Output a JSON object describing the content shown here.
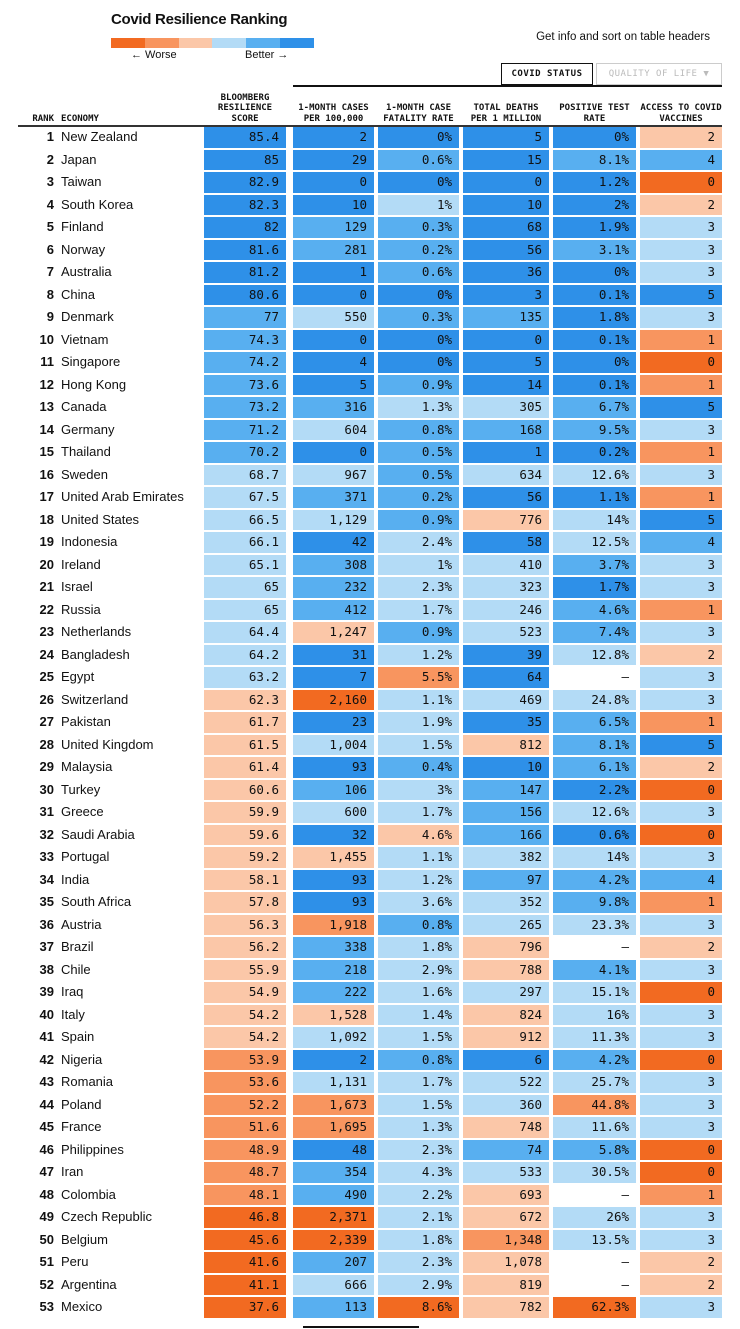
{
  "header": {
    "title": "Covid Resilience Ranking",
    "legend_worse": "← Worse",
    "legend_better": "Better →",
    "info": "Get info and sort on table headers",
    "tabs": [
      "COVID STATUS",
      "QUALITY OF LIFE ▼"
    ]
  },
  "palette": [
    "#f26a21",
    "#f8955f",
    "#fbc7a8",
    "#b3dbf6",
    "#58aff0",
    "#2e90e8",
    "#ffffff"
  ],
  "table": {
    "columns": [
      "RANK",
      "ECONOMY",
      "BLOOMBERG RESILIENCE SCORE",
      "1-MONTH CASES PER 100,000",
      "1-MONTH CASE FATALITY RATE",
      "TOTAL DEATHS PER 1 MILLION",
      "POSITIVE TEST RATE",
      "ACCESS TO COVID VACCINES"
    ],
    "rows": [
      {
        "cells": [
          "1",
          "New Zealand",
          "85.4",
          "2",
          "0%",
          "5",
          "0%",
          "2"
        ],
        "colors": [
          5,
          5,
          5,
          5,
          5,
          2
        ]
      },
      {
        "cells": [
          "2",
          "Japan",
          "85",
          "29",
          "0.6%",
          "15",
          "8.1%",
          "4"
        ],
        "colors": [
          5,
          5,
          4,
          5,
          4,
          4
        ]
      },
      {
        "cells": [
          "3",
          "Taiwan",
          "82.9",
          "0",
          "0%",
          "0",
          "1.2%",
          "0"
        ],
        "colors": [
          5,
          5,
          5,
          5,
          5,
          0
        ]
      },
      {
        "cells": [
          "4",
          "South Korea",
          "82.3",
          "10",
          "1%",
          "10",
          "2%",
          "2"
        ],
        "colors": [
          5,
          5,
          3,
          5,
          5,
          2
        ]
      },
      {
        "cells": [
          "5",
          "Finland",
          "82",
          "129",
          "0.3%",
          "68",
          "1.9%",
          "3"
        ],
        "colors": [
          5,
          4,
          4,
          5,
          5,
          3
        ]
      },
      {
        "cells": [
          "6",
          "Norway",
          "81.6",
          "281",
          "0.2%",
          "56",
          "3.1%",
          "3"
        ],
        "colors": [
          5,
          4,
          4,
          5,
          4,
          3
        ]
      },
      {
        "cells": [
          "7",
          "Australia",
          "81.2",
          "1",
          "0.6%",
          "36",
          "0%",
          "3"
        ],
        "colors": [
          5,
          5,
          4,
          5,
          5,
          3
        ]
      },
      {
        "cells": [
          "8",
          "China",
          "80.6",
          "0",
          "0%",
          "3",
          "0.1%",
          "5"
        ],
        "colors": [
          5,
          5,
          5,
          5,
          5,
          5
        ]
      },
      {
        "cells": [
          "9",
          "Denmark",
          "77",
          "550",
          "0.3%",
          "135",
          "1.8%",
          "3"
        ],
        "colors": [
          4,
          3,
          4,
          4,
          5,
          3
        ]
      },
      {
        "cells": [
          "10",
          "Vietnam",
          "74.3",
          "0",
          "0%",
          "0",
          "0.1%",
          "1"
        ],
        "colors": [
          4,
          5,
          5,
          5,
          5,
          1
        ]
      },
      {
        "cells": [
          "11",
          "Singapore",
          "74.2",
          "4",
          "0%",
          "5",
          "0%",
          "0"
        ],
        "colors": [
          4,
          5,
          5,
          5,
          5,
          0
        ]
      },
      {
        "cells": [
          "12",
          "Hong Kong",
          "73.6",
          "5",
          "0.9%",
          "14",
          "0.1%",
          "1"
        ],
        "colors": [
          4,
          5,
          4,
          5,
          5,
          1
        ]
      },
      {
        "cells": [
          "13",
          "Canada",
          "73.2",
          "316",
          "1.3%",
          "305",
          "6.7%",
          "5"
        ],
        "colors": [
          4,
          4,
          3,
          3,
          4,
          5
        ]
      },
      {
        "cells": [
          "14",
          "Germany",
          "71.2",
          "604",
          "0.8%",
          "168",
          "9.5%",
          "3"
        ],
        "colors": [
          4,
          3,
          4,
          4,
          4,
          3
        ]
      },
      {
        "cells": [
          "15",
          "Thailand",
          "70.2",
          "0",
          "0.5%",
          "1",
          "0.2%",
          "1"
        ],
        "colors": [
          4,
          5,
          4,
          5,
          5,
          1
        ]
      },
      {
        "cells": [
          "16",
          "Sweden",
          "68.7",
          "967",
          "0.5%",
          "634",
          "12.6%",
          "3"
        ],
        "colors": [
          3,
          3,
          4,
          3,
          3,
          3
        ]
      },
      {
        "cells": [
          "17",
          "United Arab Emirates",
          "67.5",
          "371",
          "0.2%",
          "56",
          "1.1%",
          "1"
        ],
        "colors": [
          3,
          4,
          4,
          5,
          5,
          1
        ]
      },
      {
        "cells": [
          "18",
          "United States",
          "66.5",
          "1,129",
          "0.9%",
          "776",
          "14%",
          "5"
        ],
        "colors": [
          3,
          3,
          4,
          2,
          3,
          5
        ]
      },
      {
        "cells": [
          "19",
          "Indonesia",
          "66.1",
          "42",
          "2.4%",
          "58",
          "12.5%",
          "4"
        ],
        "colors": [
          3,
          5,
          3,
          5,
          3,
          4
        ]
      },
      {
        "cells": [
          "20",
          "Ireland",
          "65.1",
          "308",
          "1%",
          "410",
          "3.7%",
          "3"
        ],
        "colors": [
          3,
          4,
          3,
          3,
          4,
          3
        ]
      },
      {
        "cells": [
          "21",
          "Israel",
          "65",
          "232",
          "2.3%",
          "323",
          "1.7%",
          "3"
        ],
        "colors": [
          3,
          4,
          3,
          3,
          5,
          3
        ]
      },
      {
        "cells": [
          "22",
          "Russia",
          "65",
          "412",
          "1.7%",
          "246",
          "4.6%",
          "1"
        ],
        "colors": [
          3,
          4,
          3,
          3,
          4,
          1
        ]
      },
      {
        "cells": [
          "23",
          "Netherlands",
          "64.4",
          "1,247",
          "0.9%",
          "523",
          "7.4%",
          "3"
        ],
        "colors": [
          3,
          2,
          4,
          3,
          4,
          3
        ]
      },
      {
        "cells": [
          "24",
          "Bangladesh",
          "64.2",
          "31",
          "1.2%",
          "39",
          "12.8%",
          "2"
        ],
        "colors": [
          3,
          5,
          3,
          5,
          3,
          2
        ]
      },
      {
        "cells": [
          "25",
          "Egypt",
          "63.2",
          "7",
          "5.5%",
          "64",
          "–",
          "3"
        ],
        "colors": [
          3,
          5,
          1,
          5,
          6,
          3
        ]
      },
      {
        "cells": [
          "26",
          "Switzerland",
          "62.3",
          "2,160",
          "1.1%",
          "469",
          "24.8%",
          "3"
        ],
        "colors": [
          2,
          0,
          3,
          3,
          3,
          3
        ]
      },
      {
        "cells": [
          "27",
          "Pakistan",
          "61.7",
          "23",
          "1.9%",
          "35",
          "6.5%",
          "1"
        ],
        "colors": [
          2,
          5,
          3,
          5,
          4,
          1
        ]
      },
      {
        "cells": [
          "28",
          "United Kingdom",
          "61.5",
          "1,004",
          "1.5%",
          "812",
          "8.1%",
          "5"
        ],
        "colors": [
          2,
          3,
          3,
          2,
          4,
          5
        ]
      },
      {
        "cells": [
          "29",
          "Malaysia",
          "61.4",
          "93",
          "0.4%",
          "10",
          "6.1%",
          "2"
        ],
        "colors": [
          2,
          5,
          4,
          5,
          4,
          2
        ]
      },
      {
        "cells": [
          "30",
          "Turkey",
          "60.6",
          "106",
          "3%",
          "147",
          "2.2%",
          "0"
        ],
        "colors": [
          2,
          4,
          3,
          4,
          5,
          0
        ]
      },
      {
        "cells": [
          "31",
          "Greece",
          "59.9",
          "600",
          "1.7%",
          "156",
          "12.6%",
          "3"
        ],
        "colors": [
          2,
          3,
          3,
          4,
          3,
          3
        ]
      },
      {
        "cells": [
          "32",
          "Saudi Arabia",
          "59.6",
          "32",
          "4.6%",
          "166",
          "0.6%",
          "0"
        ],
        "colors": [
          2,
          5,
          2,
          4,
          5,
          0
        ]
      },
      {
        "cells": [
          "33",
          "Portugal",
          "59.2",
          "1,455",
          "1.1%",
          "382",
          "14%",
          "3"
        ],
        "colors": [
          2,
          2,
          3,
          3,
          3,
          3
        ]
      },
      {
        "cells": [
          "34",
          "India",
          "58.1",
          "93",
          "1.2%",
          "97",
          "4.2%",
          "4"
        ],
        "colors": [
          2,
          5,
          3,
          4,
          4,
          4
        ]
      },
      {
        "cells": [
          "35",
          "South Africa",
          "57.8",
          "93",
          "3.6%",
          "352",
          "9.8%",
          "1"
        ],
        "colors": [
          2,
          5,
          3,
          3,
          4,
          1
        ]
      },
      {
        "cells": [
          "36",
          "Austria",
          "56.3",
          "1,918",
          "0.8%",
          "265",
          "23.3%",
          "3"
        ],
        "colors": [
          2,
          1,
          4,
          3,
          3,
          3
        ]
      },
      {
        "cells": [
          "37",
          "Brazil",
          "56.2",
          "338",
          "1.8%",
          "796",
          "–",
          "2"
        ],
        "colors": [
          2,
          4,
          3,
          2,
          6,
          2
        ]
      },
      {
        "cells": [
          "38",
          "Chile",
          "55.9",
          "218",
          "2.9%",
          "788",
          "4.1%",
          "3"
        ],
        "colors": [
          2,
          4,
          3,
          2,
          4,
          3
        ]
      },
      {
        "cells": [
          "39",
          "Iraq",
          "54.9",
          "222",
          "1.6%",
          "297",
          "15.1%",
          "0"
        ],
        "colors": [
          2,
          4,
          3,
          3,
          3,
          0
        ]
      },
      {
        "cells": [
          "40",
          "Italy",
          "54.2",
          "1,528",
          "1.4%",
          "824",
          "16%",
          "3"
        ],
        "colors": [
          2,
          2,
          3,
          2,
          3,
          3
        ]
      },
      {
        "cells": [
          "41",
          "Spain",
          "54.2",
          "1,092",
          "1.5%",
          "912",
          "11.3%",
          "3"
        ],
        "colors": [
          2,
          3,
          3,
          2,
          3,
          3
        ]
      },
      {
        "cells": [
          "42",
          "Nigeria",
          "53.9",
          "2",
          "0.8%",
          "6",
          "4.2%",
          "0"
        ],
        "colors": [
          1,
          5,
          4,
          5,
          4,
          0
        ]
      },
      {
        "cells": [
          "43",
          "Romania",
          "53.6",
          "1,131",
          "1.7%",
          "522",
          "25.7%",
          "3"
        ],
        "colors": [
          1,
          3,
          3,
          3,
          3,
          3
        ]
      },
      {
        "cells": [
          "44",
          "Poland",
          "52.2",
          "1,673",
          "1.5%",
          "360",
          "44.8%",
          "3"
        ],
        "colors": [
          1,
          1,
          3,
          3,
          1,
          3
        ]
      },
      {
        "cells": [
          "45",
          "France",
          "51.6",
          "1,695",
          "1.3%",
          "748",
          "11.6%",
          "3"
        ],
        "colors": [
          1,
          1,
          3,
          2,
          3,
          3
        ]
      },
      {
        "cells": [
          "46",
          "Philippines",
          "48.9",
          "48",
          "2.3%",
          "74",
          "5.8%",
          "0"
        ],
        "colors": [
          1,
          5,
          3,
          4,
          4,
          0
        ]
      },
      {
        "cells": [
          "47",
          "Iran",
          "48.7",
          "354",
          "4.3%",
          "533",
          "30.5%",
          "0"
        ],
        "colors": [
          1,
          4,
          3,
          3,
          3,
          0
        ]
      },
      {
        "cells": [
          "48",
          "Colombia",
          "48.1",
          "490",
          "2.2%",
          "693",
          "–",
          "1"
        ],
        "colors": [
          1,
          4,
          3,
          2,
          6,
          1
        ]
      },
      {
        "cells": [
          "49",
          "Czech Republic",
          "46.8",
          "2,371",
          "2.1%",
          "672",
          "26%",
          "3"
        ],
        "colors": [
          0,
          0,
          3,
          2,
          3,
          3
        ]
      },
      {
        "cells": [
          "50",
          "Belgium",
          "45.6",
          "2,339",
          "1.8%",
          "1,348",
          "13.5%",
          "3"
        ],
        "colors": [
          0,
          0,
          3,
          1,
          3,
          3
        ]
      },
      {
        "cells": [
          "51",
          "Peru",
          "41.6",
          "207",
          "2.3%",
          "1,078",
          "–",
          "2"
        ],
        "colors": [
          0,
          4,
          3,
          2,
          6,
          2
        ]
      },
      {
        "cells": [
          "52",
          "Argentina",
          "41.1",
          "666",
          "2.9%",
          "819",
          "–",
          "2"
        ],
        "colors": [
          0,
          3,
          3,
          2,
          6,
          2
        ]
      },
      {
        "cells": [
          "53",
          "Mexico",
          "37.6",
          "113",
          "8.6%",
          "782",
          "62.3%",
          "3"
        ],
        "colors": [
          0,
          4,
          0,
          2,
          0,
          3
        ]
      }
    ]
  }
}
